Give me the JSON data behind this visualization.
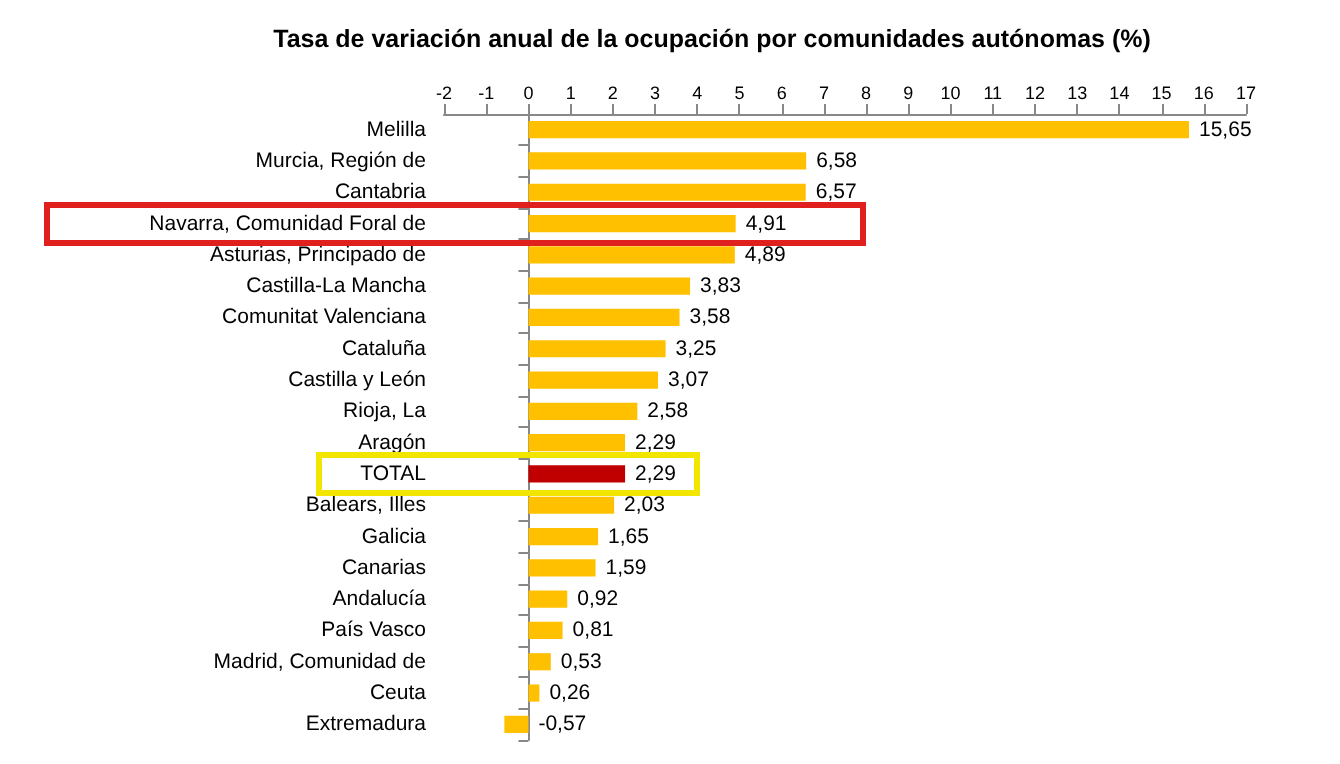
{
  "chart_data": {
    "type": "bar",
    "orientation": "horizontal",
    "title": "Tasa de variación anual de la ocupación por comunidades autónomas (%)",
    "categories": [
      "Melilla",
      "Murcia, Región de",
      "Cantabria",
      "Navarra, Comunidad Foral de",
      "Asturias, Principado de",
      "Castilla-La Mancha",
      "Comunitat Valenciana",
      "Cataluña",
      "Castilla y León",
      "Rioja, La",
      "Aragón",
      "TOTAL",
      "Balears, Illes",
      "Galicia",
      "Canarias",
      "Andalucía",
      "País Vasco",
      "Madrid, Comunidad de",
      "Ceuta",
      "Extremadura"
    ],
    "values": [
      15.65,
      6.58,
      6.57,
      4.91,
      4.89,
      3.83,
      3.58,
      3.25,
      3.07,
      2.58,
      2.29,
      2.29,
      2.03,
      1.65,
      1.59,
      0.92,
      0.81,
      0.53,
      0.26,
      -0.57
    ],
    "value_labels": [
      "15,65",
      "6,58",
      "6,57",
      "4,91",
      "4,89",
      "3,83",
      "3,58",
      "3,25",
      "3,07",
      "2,58",
      "2,29",
      "2,29",
      "2,03",
      "1,65",
      "1,59",
      "0,92",
      "0,81",
      "0,53",
      "0,26",
      "-0,57"
    ],
    "colors": [
      "#ffc000",
      "#ffc000",
      "#ffc000",
      "#ffc000",
      "#ffc000",
      "#ffc000",
      "#ffc000",
      "#ffc000",
      "#ffc000",
      "#ffc000",
      "#ffc000",
      "#c00000",
      "#ffc000",
      "#ffc000",
      "#ffc000",
      "#ffc000",
      "#ffc000",
      "#ffc000",
      "#ffc000",
      "#ffc000"
    ],
    "xlim": [
      -2,
      17
    ],
    "xticks": [
      -2,
      -1,
      0,
      1,
      2,
      3,
      4,
      5,
      6,
      7,
      8,
      9,
      10,
      11,
      12,
      13,
      14,
      15,
      16,
      17
    ]
  }
}
